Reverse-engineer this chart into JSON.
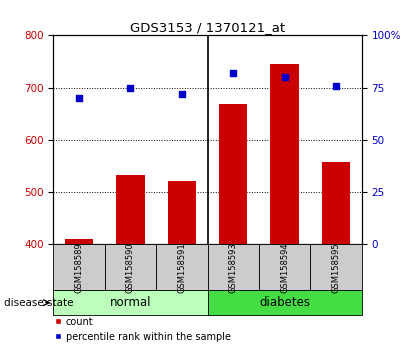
{
  "title": "GDS3153 / 1370121_at",
  "samples": [
    "GSM158589",
    "GSM158590",
    "GSM158591",
    "GSM158593",
    "GSM158594",
    "GSM158595"
  ],
  "counts": [
    410,
    533,
    522,
    668,
    745,
    558
  ],
  "percentiles": [
    70,
    75,
    72,
    82,
    80,
    76
  ],
  "group_normal": {
    "label": "normal",
    "color": "#AAFFAA",
    "indices": [
      0,
      1,
      2
    ]
  },
  "group_diabetes": {
    "label": "diabetes",
    "color": "#44EE44",
    "indices": [
      3,
      4,
      5
    ]
  },
  "ylim_left": [
    400,
    800
  ],
  "ylim_right": [
    0,
    100
  ],
  "yticks_left": [
    400,
    500,
    600,
    700,
    800
  ],
  "yticks_right": [
    0,
    25,
    50,
    75,
    100
  ],
  "bar_color": "#CC0000",
  "dot_color": "#0000CC",
  "tick_label_color_left": "#CC0000",
  "tick_label_color_right": "#0000CC",
  "xlabel_group": "disease state",
  "legend_count": "count",
  "legend_percentile": "percentile rank within the sample",
  "bar_width": 0.55,
  "sample_box_color": "#CCCCCC",
  "normal_color": "#BBFFBB",
  "diabetes_color": "#44DD44"
}
